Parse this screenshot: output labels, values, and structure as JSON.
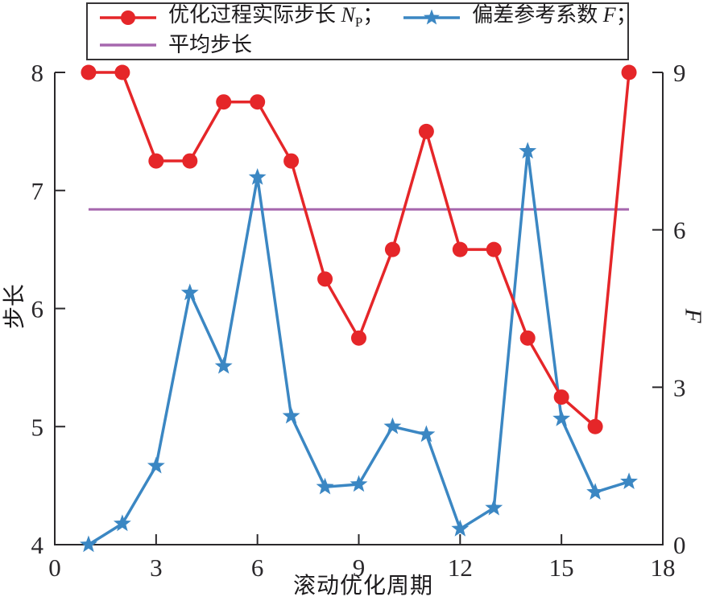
{
  "figure": {
    "background": "#ffffff",
    "xlabel": "滚动优化周期",
    "ylabel_left": "步长",
    "ylabel_right": "F"
  },
  "colors": {
    "np_red": "#e52629",
    "f_blue": "#3b87c3",
    "avg_purple": "#a667ae",
    "axis": "#2a282b"
  },
  "legend": {
    "entries": [
      {
        "key": "np",
        "marker": "circle",
        "label_prefix": "优化过程实际步长 ",
        "label_var": "N",
        "label_sub": "P",
        "label_suffix": "；"
      },
      {
        "key": "f",
        "marker": "star",
        "label_prefix": "偏差参考系数 ",
        "label_var": "F",
        "label_sub": "",
        "label_suffix": "；"
      },
      {
        "key": "avg",
        "marker": "none",
        "label_prefix": "平均步长",
        "label_var": "",
        "label_sub": "",
        "label_suffix": ""
      }
    ]
  },
  "chart_data": {
    "type": "line",
    "title": "",
    "xlabel": "滚动优化周期",
    "x": [
      1,
      2,
      3,
      4,
      5,
      6,
      7,
      8,
      9,
      10,
      11,
      12,
      13,
      14,
      15,
      16,
      17
    ],
    "series": [
      {
        "name": "优化过程实际步长 N_P",
        "key": "np",
        "axis": "left",
        "color": "#e52629",
        "marker": "circle",
        "values": [
          8,
          8,
          7.25,
          7.25,
          7.75,
          7.75,
          7.25,
          6.25,
          5.75,
          6.5,
          7.5,
          6.5,
          6.5,
          5.75,
          5.25,
          5,
          8
        ]
      },
      {
        "name": "偏差参考系数 F",
        "key": "f",
        "axis": "right",
        "color": "#3b87c3",
        "marker": "star",
        "values": [
          0,
          0.4,
          1.5,
          4.8,
          3.4,
          7.0,
          2.45,
          1.1,
          1.15,
          2.25,
          2.1,
          0.3,
          0.7,
          7.5,
          2.4,
          1.0,
          1.2
        ]
      },
      {
        "name": "平均步长",
        "key": "avg",
        "axis": "left",
        "color": "#a667ae",
        "marker": "none",
        "type": "hline",
        "value": 6.84,
        "x_start": 1,
        "x_end": 17
      }
    ],
    "left_axis": {
      "label": "步长",
      "range": [
        4,
        8
      ],
      "ticks": [
        4,
        5,
        6,
        7,
        8
      ]
    },
    "right_axis": {
      "label": "F",
      "range": [
        0,
        9
      ],
      "ticks": [
        0,
        3,
        6,
        9
      ]
    },
    "x_axis": {
      "range": [
        0,
        18
      ],
      "ticks": [
        0,
        3,
        6,
        9,
        12,
        15,
        18
      ]
    },
    "grid": false,
    "legend_position": "top"
  }
}
